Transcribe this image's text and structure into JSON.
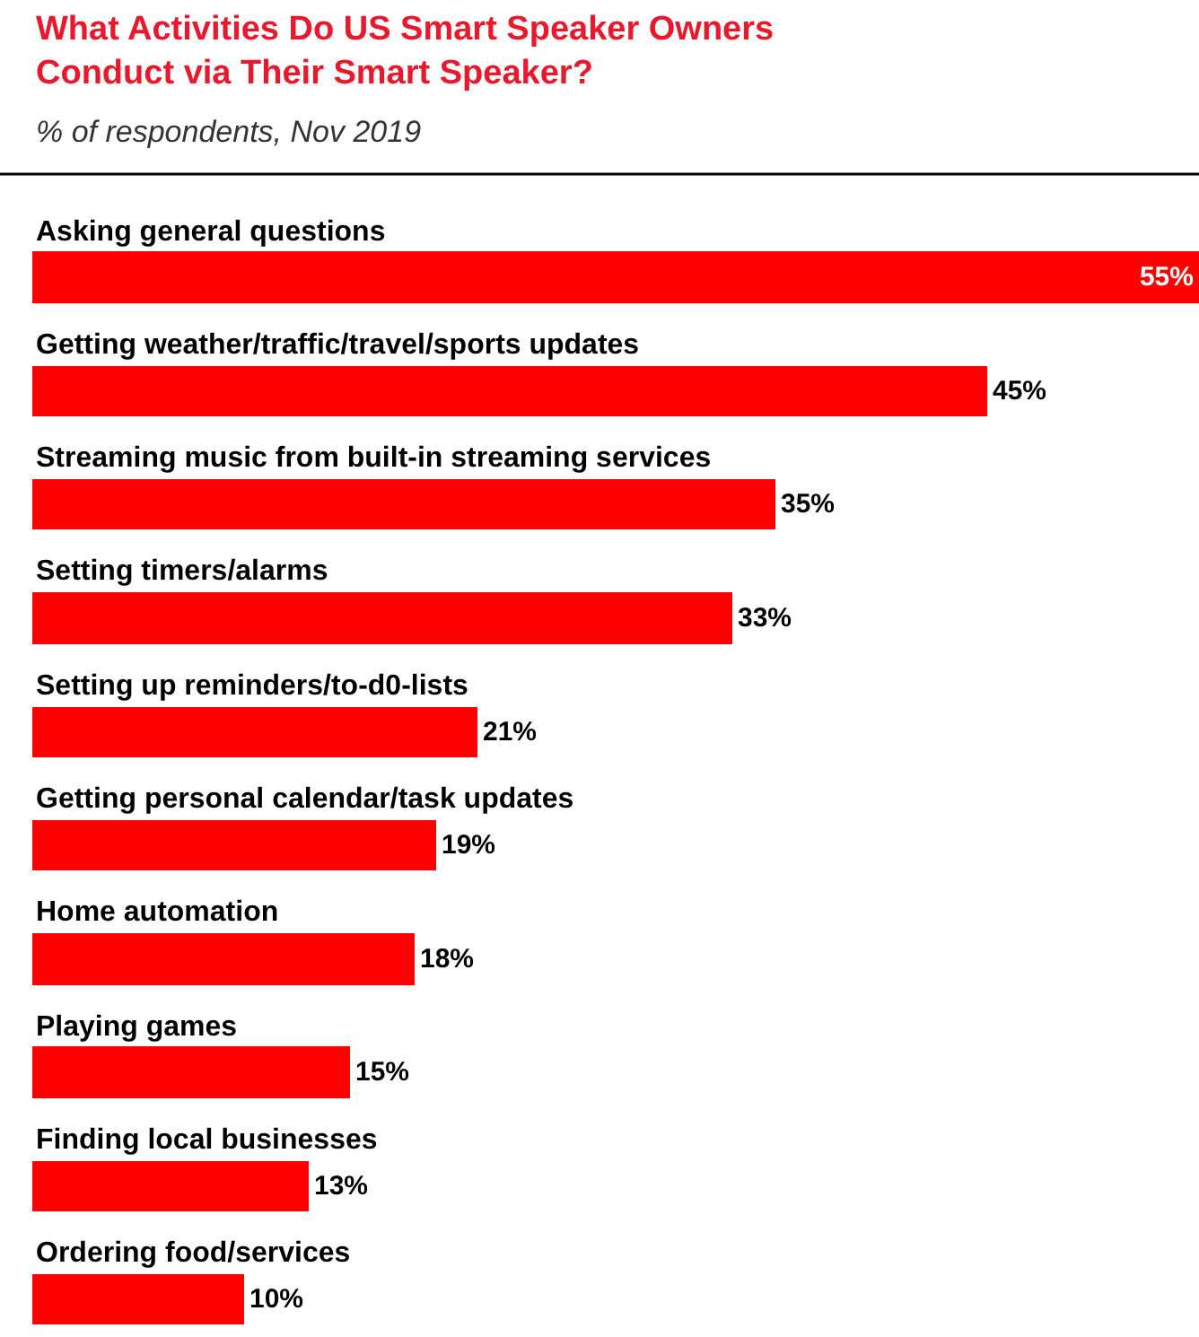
{
  "chart_data": {
    "type": "bar",
    "orientation": "horizontal",
    "title": "What Activities Do US Smart Speaker Owners Conduct via Their Smart Speaker?",
    "subtitle": "% of respondents, Nov 2019",
    "categories": [
      "Asking general questions",
      "Getting weather/traffic/travel/sports updates",
      "Streaming music from built-in streaming services",
      "Setting timers/alarms",
      "Setting up reminders/to-d0-lists",
      "Getting personal calendar/task updates",
      "Home automation",
      "Playing games",
      "Finding local businesses",
      "Ordering food/services"
    ],
    "values": [
      55,
      45,
      35,
      33,
      21,
      19,
      18,
      15,
      13,
      10
    ],
    "value_labels": [
      "55%",
      "45%",
      "35%",
      "33%",
      "21%",
      "19%",
      "18%",
      "15%",
      "13%",
      "10%"
    ],
    "color": "#ff0000",
    "xlim": [
      0,
      55
    ],
    "tick_labels": false
  }
}
